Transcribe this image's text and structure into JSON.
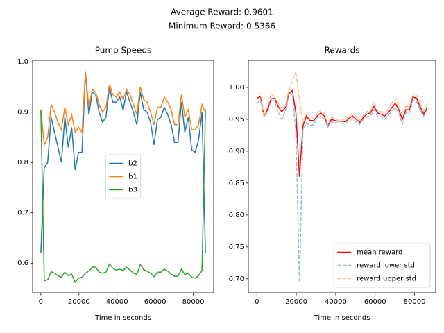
{
  "figure_title": [
    "Average Reward: 0.9601",
    "Minimum Reward: 0.5366"
  ],
  "chart_data": [
    {
      "type": "line",
      "title": "Pump Speeds",
      "xlabel": "Time in seconds",
      "legend": "center",
      "x": [
        0,
        1800,
        3600,
        5400,
        7200,
        9000,
        10800,
        12600,
        14400,
        16200,
        18000,
        19800,
        21600,
        23400,
        25200,
        27000,
        28800,
        30600,
        32400,
        34200,
        36000,
        37800,
        39600,
        41400,
        43200,
        45000,
        46800,
        48600,
        50400,
        52200,
        54000,
        55800,
        57600,
        59400,
        61200,
        63000,
        64800,
        66600,
        68400,
        70200,
        72000,
        73800,
        75600,
        77400,
        79200,
        81000,
        82800,
        84600,
        86400
      ],
      "xlim": [
        -4320,
        90720
      ],
      "xticks": [
        0,
        20000,
        40000,
        60000,
        80000
      ],
      "ylim": [
        0.541,
        1.003
      ],
      "yticks": [
        0.6,
        0.7,
        0.8,
        0.9,
        {
          "value": 1,
          "label": "1.0"
        }
      ],
      "series": [
        {
          "name": "b2",
          "color": "#1f77b4",
          "values": [
            0.62,
            0.79,
            0.8,
            0.89,
            0.86,
            0.83,
            0.8,
            0.89,
            0.83,
            0.87,
            0.785,
            0.82,
            0.82,
            0.98,
            0.895,
            0.94,
            0.935,
            0.9,
            0.88,
            0.89,
            0.95,
            0.92,
            0.92,
            0.93,
            0.905,
            0.94,
            0.92,
            0.9,
            0.875,
            0.94,
            0.905,
            0.9,
            0.88,
            0.835,
            0.885,
            0.89,
            0.91,
            0.895,
            0.875,
            0.84,
            0.84,
            0.92,
            0.86,
            0.89,
            0.825,
            0.82,
            0.845,
            0.9,
            0.62
          ]
        },
        {
          "name": "b1",
          "color": "#ff7f0e",
          "values": [
            0.905,
            0.835,
            0.85,
            0.915,
            0.9,
            0.88,
            0.865,
            0.91,
            0.875,
            0.895,
            0.86,
            0.87,
            0.86,
            0.98,
            0.91,
            0.945,
            0.94,
            0.915,
            0.9,
            0.91,
            0.955,
            0.935,
            0.93,
            0.94,
            0.925,
            0.945,
            0.935,
            0.915,
            0.895,
            0.95,
            0.925,
            0.92,
            0.9,
            0.875,
            0.91,
            0.91,
            0.93,
            0.92,
            0.905,
            0.875,
            0.875,
            0.935,
            0.89,
            0.905,
            0.865,
            0.865,
            0.875,
            0.915,
            0.9
          ]
        },
        {
          "name": "b3",
          "color": "#2ca02c",
          "values": [
            0.905,
            0.565,
            0.567,
            0.583,
            0.58,
            0.575,
            0.572,
            0.582,
            0.575,
            0.578,
            0.562,
            0.57,
            0.572,
            0.58,
            0.584,
            0.592,
            0.592,
            0.582,
            0.58,
            0.582,
            0.598,
            0.59,
            0.586,
            0.588,
            0.585,
            0.592,
            0.586,
            0.58,
            0.578,
            0.597,
            0.587,
            0.584,
            0.58,
            0.573,
            0.582,
            0.582,
            0.588,
            0.584,
            0.578,
            0.574,
            0.574,
            0.588,
            0.577,
            0.58,
            0.572,
            0.57,
            0.575,
            0.585,
            0.905
          ]
        }
      ]
    },
    {
      "type": "line",
      "title": "Rewards",
      "xlabel": "Time in seconds",
      "legend": "lower right",
      "x": [
        0,
        1800,
        3600,
        5400,
        7200,
        9000,
        10800,
        12600,
        14400,
        16200,
        18000,
        19800,
        21600,
        23400,
        25200,
        27000,
        28800,
        30600,
        32400,
        34200,
        36000,
        37800,
        39600,
        41400,
        43200,
        45000,
        46800,
        48600,
        50400,
        52200,
        54000,
        55800,
        57600,
        59400,
        61200,
        63000,
        64800,
        66600,
        68400,
        70200,
        72000,
        73800,
        75600,
        77400,
        79200,
        81000,
        82800,
        84600,
        86400
      ],
      "xlim": [
        -4320,
        90720
      ],
      "xticks": [
        0,
        20000,
        40000,
        60000,
        80000
      ],
      "ylim": [
        0.678,
        1.0424
      ],
      "yticks": [
        {
          "value": 0.7,
          "label": "0.70"
        },
        0.75,
        {
          "value": 0.8,
          "label": "0.80"
        },
        0.85,
        {
          "value": 0.9,
          "label": "0.90"
        },
        0.95,
        {
          "value": 1,
          "label": "1.00"
        }
      ],
      "series": [
        {
          "name": "mean reward",
          "color": "#ff0000",
          "linestyle": "solid",
          "values": [
            0.983,
            0.986,
            0.955,
            0.965,
            0.982,
            0.983,
            0.97,
            0.962,
            0.968,
            0.99,
            0.995,
            0.96,
            0.86,
            0.94,
            0.955,
            0.948,
            0.948,
            0.955,
            0.96,
            0.955,
            0.94,
            0.95,
            0.948,
            0.947,
            0.947,
            0.946,
            0.952,
            0.955,
            0.95,
            0.945,
            0.953,
            0.958,
            0.96,
            0.97,
            0.96,
            0.958,
            0.955,
            0.96,
            0.968,
            0.975,
            0.965,
            0.95,
            0.965,
            0.965,
            0.985,
            0.983,
            0.97,
            0.958,
            0.968
          ]
        },
        {
          "name": "reward lower std",
          "color": "#8fbbd9",
          "linestyle": "dashed",
          "values": [
            0.975,
            0.98,
            0.955,
            0.96,
            0.98,
            0.978,
            0.962,
            0.95,
            0.962,
            0.985,
            0.99,
            0.93,
            0.695,
            0.935,
            0.945,
            0.94,
            0.942,
            0.952,
            0.955,
            0.95,
            0.938,
            0.946,
            0.945,
            0.944,
            0.944,
            0.943,
            0.948,
            0.952,
            0.946,
            0.942,
            0.95,
            0.953,
            0.955,
            0.965,
            0.955,
            0.954,
            0.95,
            0.955,
            0.963,
            0.968,
            0.96,
            0.942,
            0.96,
            0.96,
            0.98,
            0.978,
            0.965,
            0.955,
            0.965
          ]
        },
        {
          "name": "reward upper std",
          "color": "#ffbf86",
          "linestyle": "dashed",
          "values": [
            0.99,
            0.99,
            0.955,
            0.97,
            0.99,
            0.985,
            0.975,
            0.968,
            0.97,
            0.995,
            1.01,
            1.025,
            0.98,
            0.945,
            0.96,
            0.955,
            0.952,
            0.958,
            0.965,
            0.96,
            0.942,
            0.954,
            0.95,
            0.95,
            0.95,
            0.949,
            0.955,
            0.958,
            0.954,
            0.948,
            0.956,
            0.962,
            0.965,
            0.978,
            0.964,
            0.962,
            0.96,
            0.965,
            0.975,
            0.983,
            0.97,
            0.957,
            0.97,
            0.97,
            0.99,
            0.988,
            0.975,
            0.962,
            0.973
          ]
        }
      ]
    }
  ]
}
